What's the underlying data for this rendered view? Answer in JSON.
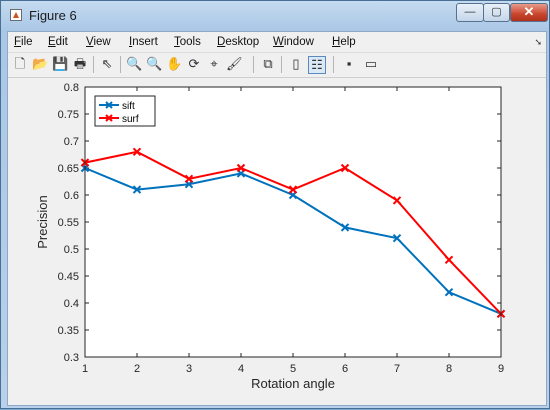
{
  "window": {
    "title": "Figure 6",
    "min_label": "—",
    "max_label": "▢",
    "close_label": "✕"
  },
  "menu": {
    "items": [
      {
        "key": "F",
        "rest": "ile"
      },
      {
        "key": "E",
        "rest": "dit"
      },
      {
        "key": "V",
        "rest": "iew"
      },
      {
        "key": "I",
        "rest": "nsert"
      },
      {
        "key": "T",
        "rest": "ools"
      },
      {
        "key": "D",
        "rest": "esktop"
      },
      {
        "key": "W",
        "rest": "indow"
      },
      {
        "key": "H",
        "rest": "elp"
      }
    ],
    "arrow": "➘"
  },
  "toolbar": {
    "icons": [
      {
        "name": "new-figure-icon",
        "glyph": "🗋"
      },
      {
        "name": "open-file-icon",
        "glyph": "📂"
      },
      {
        "name": "save-icon",
        "glyph": "💾"
      },
      {
        "name": "print-icon",
        "glyph": "🖶"
      },
      {
        "name": "edit-plot-icon",
        "glyph": "⇖"
      },
      {
        "name": "zoom-in-icon",
        "glyph": "🔍"
      },
      {
        "name": "zoom-out-icon",
        "glyph": "🔍"
      },
      {
        "name": "pan-icon",
        "glyph": "✋"
      },
      {
        "name": "rotate-3d-icon",
        "glyph": "⟳"
      },
      {
        "name": "data-cursor-icon",
        "glyph": "⌖"
      },
      {
        "name": "brush-icon",
        "glyph": "🖌"
      },
      {
        "name": "link-plot-icon",
        "glyph": "⧉"
      },
      {
        "name": "colorbar-icon",
        "glyph": "▯"
      },
      {
        "name": "legend-icon",
        "glyph": "☷"
      },
      {
        "name": "hide-plot-tools-icon",
        "glyph": "▪"
      },
      {
        "name": "show-plot-tools-icon",
        "glyph": "▭"
      }
    ]
  },
  "chart_data": {
    "type": "line",
    "xlabel": "Rotation angle",
    "ylabel": "Precision",
    "x": [
      1,
      2,
      3,
      4,
      5,
      6,
      7,
      8,
      9
    ],
    "xlim": [
      1,
      9
    ],
    "ylim": [
      0.3,
      0.8
    ],
    "xticks": [
      "1",
      "2",
      "3",
      "4",
      "5",
      "6",
      "7",
      "8",
      "9"
    ],
    "yticks": [
      "0.3",
      "0.35",
      "0.4",
      "0.45",
      "0.5",
      "0.55",
      "0.6",
      "0.65",
      "0.7",
      "0.75",
      "0.8"
    ],
    "grid": false,
    "legend_position": "top-left",
    "series": [
      {
        "name": "sift",
        "color": "#0072bd",
        "values": [
          0.65,
          0.61,
          0.62,
          0.64,
          0.6,
          0.54,
          0.52,
          0.42,
          0.38
        ]
      },
      {
        "name": "surf",
        "color": "#ff0000",
        "values": [
          0.66,
          0.68,
          0.63,
          0.65,
          0.61,
          0.65,
          0.59,
          0.48,
          0.38
        ]
      }
    ]
  }
}
